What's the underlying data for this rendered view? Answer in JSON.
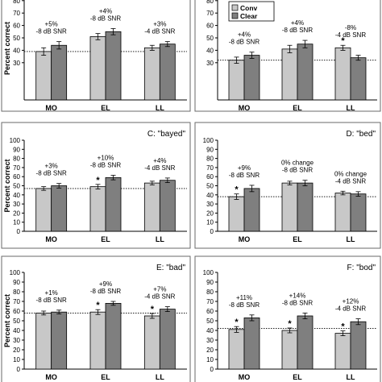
{
  "chart_data": [
    {
      "type": "bar",
      "title": "",
      "ylabel": "Percent correct",
      "ylim": [
        0,
        100
      ],
      "visible_ticks": [
        30,
        40,
        50,
        60,
        70,
        80
      ],
      "categories": [
        "MO",
        "EL",
        "LL"
      ],
      "series": [
        {
          "values": [
            39,
            51,
            42
          ],
          "errors": [
            3,
            2.5,
            2
          ]
        },
        {
          "values": [
            44,
            55,
            45
          ],
          "errors": [
            3,
            2.5,
            2
          ]
        }
      ],
      "reference_line": 39,
      "annotations": [
        {
          "line1": "+5%",
          "line2": "-8 dB SNR",
          "star": false
        },
        {
          "line1": "+4%",
          "line2": "-8 dB SNR",
          "star": false
        },
        {
          "line1": "+3%",
          "line2": "-4 dB SNR",
          "star": false
        }
      ]
    },
    {
      "type": "bar",
      "title": "",
      "ylabel": "",
      "ylim": [
        0,
        100
      ],
      "visible_ticks": [
        30,
        40,
        50,
        60,
        70,
        80,
        90
      ],
      "categories": [
        "MO",
        "EL",
        "LL"
      ],
      "series": [
        {
          "name": "Conv",
          "values": [
            32,
            41,
            42
          ],
          "errors": [
            2.5,
            3,
            2
          ]
        },
        {
          "name": "Clear",
          "values": [
            36,
            45,
            34
          ],
          "errors": [
            2.5,
            3,
            2
          ]
        }
      ],
      "legend": {
        "labels": [
          "Conv",
          "Clear"
        ],
        "placement": "top"
      },
      "reference_line": 32,
      "annotations": [
        {
          "line1": "+4%",
          "line2": "-8 dB SNR",
          "star": false
        },
        {
          "line1": "+4%",
          "line2": "-8 dB SNR",
          "star": false
        },
        {
          "line1": "-8%",
          "line2": "-4 dB SNR",
          "star": true
        }
      ]
    },
    {
      "type": "bar",
      "title": "C: \"bayed\"",
      "ylabel": "Percent correct",
      "ylim": [
        0,
        100
      ],
      "yticks": [
        0,
        10,
        20,
        30,
        40,
        50,
        60,
        70,
        80,
        90,
        100
      ],
      "categories": [
        "MO",
        "EL",
        "LL"
      ],
      "series": [
        {
          "values": [
            47,
            49,
            53
          ],
          "errors": [
            2,
            2.5,
            2
          ]
        },
        {
          "values": [
            50,
            59,
            56
          ],
          "errors": [
            2.5,
            2.5,
            2.5
          ]
        }
      ],
      "reference_line": 47,
      "annotations": [
        {
          "line1": "+3%",
          "line2": "-8 dB SNR",
          "star": false
        },
        {
          "line1": "+10%",
          "line2": "-8 dB SNR",
          "star": true
        },
        {
          "line1": "+4%",
          "line2": "-4 dB SNR",
          "star": false
        }
      ]
    },
    {
      "type": "bar",
      "title": "D: \"bed\"",
      "ylabel": "",
      "ylim": [
        0,
        100
      ],
      "yticks": [
        0,
        10,
        20,
        30,
        40,
        50,
        60,
        70,
        80,
        90,
        100
      ],
      "categories": [
        "MO",
        "EL",
        "LL"
      ],
      "series": [
        {
          "values": [
            38,
            53,
            42
          ],
          "errors": [
            3,
            2,
            2
          ]
        },
        {
          "values": [
            47,
            53,
            41
          ],
          "errors": [
            3.5,
            3,
            2.5
          ]
        }
      ],
      "reference_line": 38,
      "annotations": [
        {
          "line1": "+9%",
          "line2": "-8 dB SNR",
          "star": true
        },
        {
          "line1": "0% change",
          "line2": "-8 dB SNR",
          "star": false
        },
        {
          "line1": "0% change",
          "line2": "-4 dB SNR",
          "star": false
        }
      ]
    },
    {
      "type": "bar",
      "title": "E: \"bad\"",
      "ylabel": "Percent correct",
      "ylim": [
        0,
        100
      ],
      "yticks": [
        0,
        10,
        20,
        30,
        40,
        50,
        60,
        70,
        80,
        90,
        100
      ],
      "categories": [
        "MO",
        "EL",
        "LL"
      ],
      "series": [
        {
          "values": [
            58,
            59,
            55
          ],
          "errors": [
            2,
            2.5,
            2.5
          ]
        },
        {
          "values": [
            59,
            68,
            62
          ],
          "errors": [
            2,
            2,
            2.5
          ]
        }
      ],
      "reference_line": 58,
      "annotations": [
        {
          "line1": "+1%",
          "line2": "-8 dB SNR",
          "star": false
        },
        {
          "line1": "+9%",
          "line2": "-8 dB SNR",
          "star": true
        },
        {
          "line1": "+7%",
          "line2": "-4 dB SNR",
          "star": true
        }
      ]
    },
    {
      "type": "bar",
      "title": "F: \"bod\"",
      "ylabel": "",
      "ylim": [
        0,
        100
      ],
      "yticks": [
        0,
        10,
        20,
        30,
        40,
        50,
        60,
        70,
        80,
        90,
        100
      ],
      "categories": [
        "MO",
        "EL",
        "LL"
      ],
      "series": [
        {
          "values": [
            41,
            40,
            37
          ],
          "errors": [
            3,
            2.5,
            2.5
          ]
        },
        {
          "values": [
            53,
            55,
            49
          ],
          "errors": [
            3,
            3,
            3
          ]
        }
      ],
      "reference_line": 42,
      "annotations": [
        {
          "line1": "+11%",
          "line2": "-8 dB SNR",
          "star": true
        },
        {
          "line1": "+14%",
          "line2": "-8 dB SNR",
          "star": true
        },
        {
          "line1": "+12%",
          "line2": "-4 dB SNR",
          "star": true
        }
      ]
    }
  ],
  "colors": {
    "conv": "#c8c8c8",
    "clear": "#7f7f7f",
    "axis": "#000000",
    "frame": "#6a6a6a"
  }
}
